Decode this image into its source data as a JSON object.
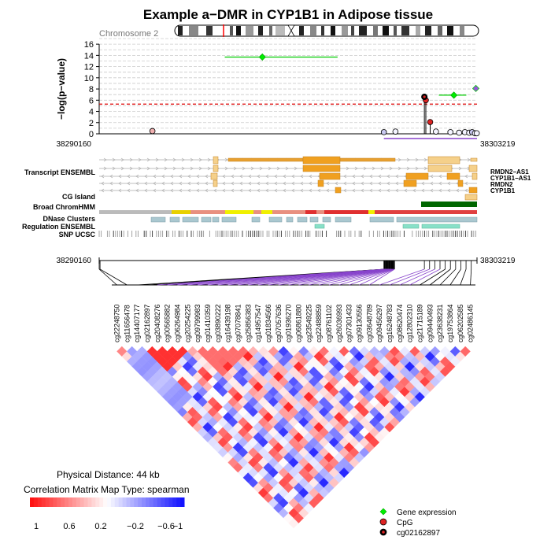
{
  "chart_data": {
    "type": "scatter",
    "title": "Example a−DMR in CYP1B1 in Adipose tissue",
    "chromosome_label": "Chromosome 2",
    "ylabel": "−log(p−value)",
    "ylim": [
      0,
      17
    ],
    "yticks": [
      "0",
      "2",
      "4",
      "6",
      "8",
      "10",
      "12",
      "14",
      "16"
    ],
    "xlim": [
      38290160,
      38303219
    ],
    "region_start_label": "38290160",
    "region_end_label": "38303219",
    "significance_threshold": 5.3,
    "grid": "horizontal dashed",
    "colors": {
      "gene_expression": "#00ee00",
      "cpg": "#dd2222",
      "reference_cpg": "#000000",
      "threshold": "#dd0000",
      "heat_positive": "#ff0000",
      "heat_negative": "#0000ff"
    },
    "series": [
      {
        "name": "CpG",
        "points": [
          {
            "x": 38292000,
            "y": 0.5
          },
          {
            "x": 38300000,
            "y": 0.3
          },
          {
            "x": 38300400,
            "y": 0.4
          },
          {
            "x": 38301400,
            "y": 6.6
          },
          {
            "x": 38301450,
            "y": 6.0
          },
          {
            "x": 38301600,
            "y": 2.1
          },
          {
            "x": 38301800,
            "y": 0.4
          },
          {
            "x": 38302300,
            "y": 0.3
          },
          {
            "x": 38302600,
            "y": 0.2
          },
          {
            "x": 38302800,
            "y": 0.3
          },
          {
            "x": 38302950,
            "y": 0.2
          },
          {
            "x": 38303050,
            "y": 0.3
          },
          {
            "x": 38303150,
            "y": 0.1
          },
          {
            "x": 38303210,
            "y": 0.1
          }
        ]
      },
      {
        "name": "Gene expression",
        "points": [
          {
            "x": 38295800,
            "y": 13.7,
            "range": [
              38294500,
              38298400
            ]
          },
          {
            "x": 38302420,
            "y": 6.9,
            "range": [
              38301900,
              38302850
            ]
          },
          {
            "x": 38303180,
            "y": 8.1
          }
        ]
      },
      {
        "name": "cg02162897",
        "points": [
          {
            "x": 38301400,
            "y": 6.6
          }
        ]
      }
    ],
    "legend": {
      "placement": "bottom-right",
      "entries": [
        "Gene expression",
        "CpG",
        "cg02162897"
      ]
    },
    "tracks": {
      "transcript_label": "Transcript ENSEMBL",
      "cg_island_label": "CG Island",
      "chromhmm_label": "Broad ChromHMM",
      "dnase_label": "DNase Clusters",
      "regulation_label": "Regulation ENSEMBL",
      "snp_label": "SNP UCSC",
      "gene_names": [
        "RMDN2−AS1",
        "CYP1B1−AS1",
        "RMDN2",
        "CYP1B1"
      ]
    },
    "correlation": {
      "cpg_ids": [
        "cg22248750",
        "cg11656478",
        "cg14407177",
        "cg02162897",
        "cg20408276",
        "cg00565882",
        "cg06264984",
        "cg20254225",
        "cg09799983",
        "cg01410359",
        "cg03890222",
        "cg16439198",
        "cg07078841",
        "cg25856383",
        "cg14957547",
        "cg01834566",
        "cg07057636",
        "cg01936270",
        "cg06861880",
        "cg23549225",
        "cg22488859",
        "cg08761102",
        "cg26036993",
        "cg07301433",
        "cg09130556",
        "cg03648789",
        "cg09456297",
        "cg16248783",
        "cg08620474",
        "cg12802310",
        "cg21715189",
        "cg09440493",
        "cg23638231",
        "cg19753864",
        "cg06202585",
        "cg02486145"
      ],
      "physical_distance_label": "Physical Distance: 44 kb",
      "map_type_label": "Correlation Matrix Map Type: spearman",
      "scale_labels": [
        "1",
        "0.6",
        "0.2",
        "−0.2",
        "−0.6",
        "−1"
      ]
    }
  }
}
